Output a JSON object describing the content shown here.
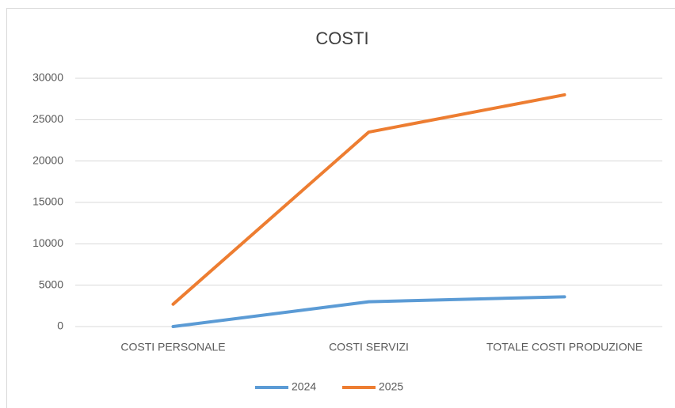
{
  "chart_data": {
    "type": "line",
    "title": "COSTI",
    "categories": [
      "COSTI PERSONALE",
      "COSTI SERVIZI",
      "TOTALE COSTI PRODUZIONE"
    ],
    "series": [
      {
        "name": "2024",
        "color": "#5b9bd5",
        "values": [
          0,
          3000,
          3600
        ]
      },
      {
        "name": "2025",
        "color": "#ed7d31",
        "values": [
          2700,
          23500,
          28000
        ]
      }
    ],
    "ylim": [
      0,
      30000
    ],
    "yticks": [
      0,
      5000,
      10000,
      15000,
      20000,
      25000,
      30000
    ],
    "grid": true,
    "legend": "bottom"
  }
}
